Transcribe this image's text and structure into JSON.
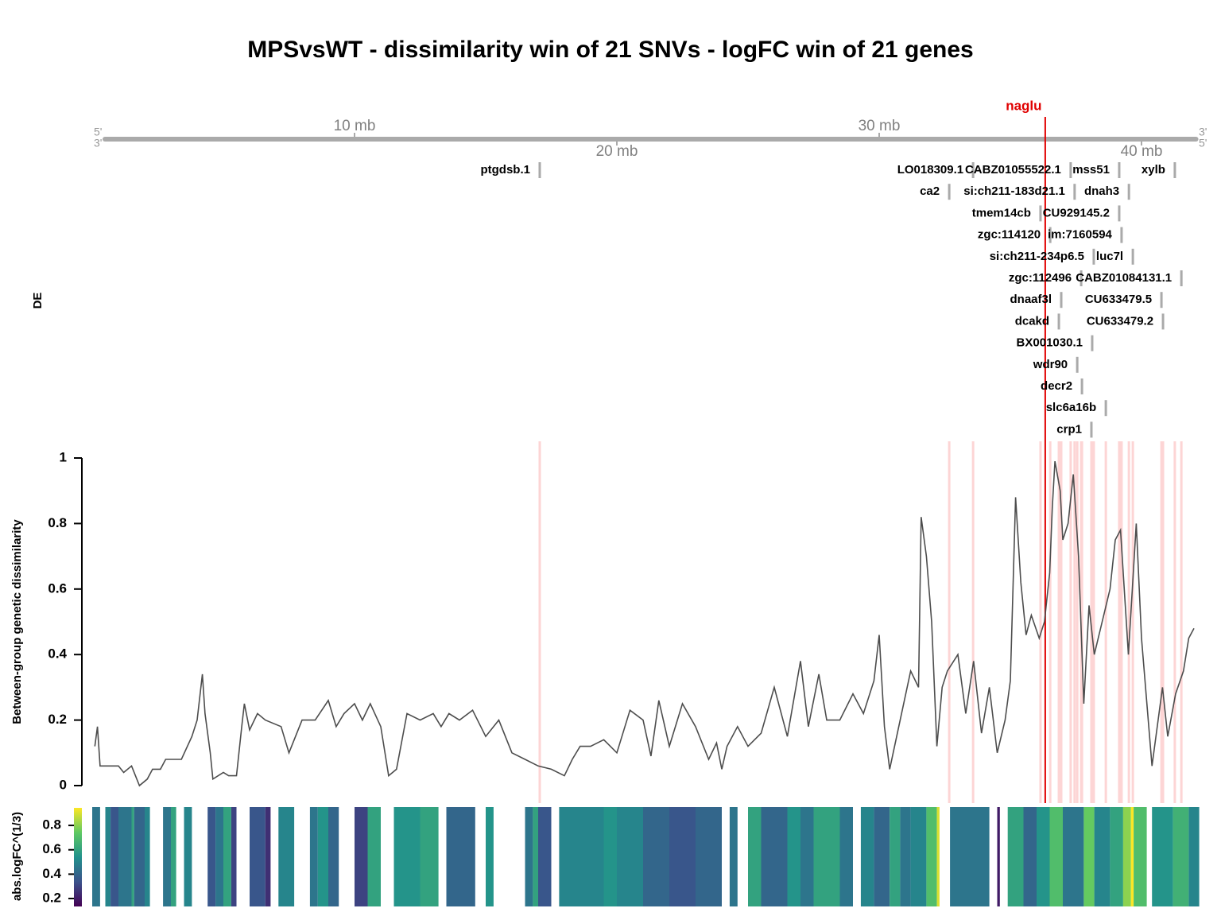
{
  "chart_data": {
    "type": "line",
    "title": "MPSvsWT - dissimilarity win of 21 SNVs - logFC win of 21 genes",
    "y_label": "Between-group genetic dissimilarity",
    "color": "#4d4d4d",
    "xlim": [
      0,
      42.2
    ],
    "ylim": [
      0,
      1
    ],
    "yticks": [
      0,
      0.2,
      0.4,
      0.6,
      0.8,
      1
    ],
    "x": [
      0.1,
      0.2,
      0.3,
      1.0,
      1.2,
      1.5,
      1.8,
      2.1,
      2.3,
      2.6,
      2.8,
      3.4,
      3.8,
      4.0,
      4.2,
      4.3,
      4.5,
      4.6,
      5.0,
      5.2,
      5.5,
      5.7,
      5.8,
      6.0,
      6.3,
      6.6,
      7.2,
      7.5,
      7.8,
      8.0,
      8.5,
      9.0,
      9.3,
      9.6,
      10.0,
      10.3,
      10.6,
      11.0,
      11.3,
      11.6,
      12.0,
      12.5,
      13.0,
      13.3,
      13.6,
      14.0,
      14.5,
      15.0,
      15.5,
      16.0,
      16.5,
      17.0,
      17.5,
      18.0,
      18.3,
      18.6,
      19.0,
      19.5,
      20.0,
      20.5,
      21.0,
      21.3,
      21.6,
      22.0,
      22.5,
      23.0,
      23.5,
      23.8,
      24.0,
      24.2,
      24.6,
      25.0,
      25.5,
      26.0,
      26.5,
      27.0,
      27.3,
      27.7,
      28.0,
      28.5,
      29.0,
      29.4,
      29.8,
      30.0,
      30.2,
      30.4,
      30.8,
      31.2,
      31.5,
      31.6,
      31.8,
      32.0,
      32.2,
      32.4,
      32.6,
      33.0,
      33.3,
      33.6,
      33.9,
      34.2,
      34.5,
      34.8,
      35.0,
      35.2,
      35.4,
      35.6,
      35.8,
      36.1,
      36.3,
      36.5,
      36.6,
      36.7,
      36.9,
      37.0,
      37.2,
      37.4,
      37.6,
      37.8,
      38.0,
      38.2,
      38.5,
      38.8,
      39.0,
      39.2,
      39.5,
      39.8,
      40.0,
      40.4,
      40.8,
      41.0,
      41.3,
      41.6,
      41.8,
      42.0
    ],
    "values": [
      0.12,
      0.18,
      0.06,
      0.06,
      0.04,
      0.06,
      0.0,
      0.02,
      0.05,
      0.05,
      0.08,
      0.08,
      0.15,
      0.2,
      0.34,
      0.22,
      0.1,
      0.02,
      0.04,
      0.03,
      0.03,
      0.18,
      0.25,
      0.17,
      0.22,
      0.2,
      0.18,
      0.1,
      0.16,
      0.2,
      0.2,
      0.26,
      0.18,
      0.22,
      0.25,
      0.2,
      0.25,
      0.18,
      0.03,
      0.05,
      0.22,
      0.2,
      0.22,
      0.18,
      0.22,
      0.2,
      0.23,
      0.15,
      0.2,
      0.1,
      0.08,
      0.06,
      0.05,
      0.03,
      0.08,
      0.12,
      0.12,
      0.14,
      0.1,
      0.23,
      0.2,
      0.09,
      0.26,
      0.12,
      0.25,
      0.18,
      0.08,
      0.13,
      0.05,
      0.12,
      0.18,
      0.12,
      0.16,
      0.3,
      0.15,
      0.38,
      0.18,
      0.34,
      0.2,
      0.2,
      0.28,
      0.22,
      0.32,
      0.46,
      0.18,
      0.05,
      0.2,
      0.35,
      0.3,
      0.82,
      0.7,
      0.5,
      0.12,
      0.3,
      0.35,
      0.4,
      0.22,
      0.38,
      0.16,
      0.3,
      0.1,
      0.2,
      0.32,
      0.88,
      0.62,
      0.46,
      0.52,
      0.45,
      0.5,
      0.65,
      0.85,
      0.99,
      0.9,
      0.75,
      0.8,
      0.95,
      0.7,
      0.25,
      0.55,
      0.4,
      0.5,
      0.6,
      0.75,
      0.78,
      0.4,
      0.8,
      0.45,
      0.06,
      0.3,
      0.15,
      0.28,
      0.35,
      0.45,
      0.48
    ],
    "genome_axis": {
      "xticks": [
        {
          "value": 10,
          "label": "10 mb"
        },
        {
          "value": 20,
          "label": "20 mb"
        },
        {
          "value": 30,
          "label": "30 mb"
        },
        {
          "value": 40,
          "label": "40 mb"
        }
      ],
      "strand_left": [
        "5'",
        "3'"
      ],
      "strand_right": [
        "3'",
        "5'"
      ]
    },
    "marker": {
      "name": "naglu",
      "position": 36.33,
      "color": "#e00000"
    },
    "genes": {
      "label": "DE",
      "highlight_color": "#fdd5d5",
      "names": [
        "ptgdsb.1",
        "LO018309.1",
        "CABZ01055522.1",
        "mss51",
        "xylb",
        "ca2",
        "si:ch211-183d21.1",
        "dnah3",
        "tmem14cb",
        "CU929145.2",
        "zgc:114120",
        "im:7160594",
        "si:ch211-234p6.5",
        "luc7l",
        "zgc:112496",
        "CABZ01084131.1",
        "dnaaf3l",
        "CU633479.5",
        "dcakd",
        "CU633479.2",
        "BX001030.1",
        "wdr90",
        "decr2",
        "slc6a16b",
        "crp1"
      ],
      "positions": [
        17.06,
        33.58,
        37.3,
        39.15,
        41.27,
        32.67,
        37.45,
        39.52,
        36.15,
        39.15,
        36.52,
        39.24,
        38.18,
        39.67,
        37.7,
        41.52,
        36.94,
        40.76,
        36.85,
        40.82,
        38.12,
        37.55,
        37.73,
        38.64,
        38.09
      ]
    },
    "heatmap": {
      "label": "abs.logFC^(1/3)",
      "colorscale": [
        "#440154",
        "#3b528b",
        "#21918c",
        "#5ec962",
        "#fde725"
      ],
      "clim": [
        0.135,
        0.944
      ],
      "cticks": [
        0.2,
        0.4,
        0.6,
        0.8
      ],
      "x": [
        0.0,
        0.3,
        0.5,
        0.7,
        1.0,
        1.5,
        1.6,
        2.0,
        2.2,
        2.7,
        3.0,
        3.2,
        3.5,
        3.8,
        4.4,
        4.7,
        5.0,
        5.3,
        5.5,
        6.0,
        6.6,
        6.8,
        7.1,
        7.7,
        8.3,
        8.6,
        9.0,
        9.4,
        10.0,
        10.5,
        11.0,
        11.5,
        12.5,
        13.2,
        13.5,
        14.6,
        15.0,
        15.3,
        16.5,
        16.8,
        17.0,
        17.5,
        17.8,
        19.5,
        20.0,
        21.0,
        22.0,
        23.0,
        24.0,
        24.3,
        24.6,
        25.0,
        25.5,
        26.5,
        27.0,
        27.5,
        28.5,
        29.0,
        29.3,
        29.8,
        30.4,
        30.8,
        31.2,
        31.8,
        32.2,
        32.3,
        32.7,
        34.2,
        34.5,
        34.6,
        34.9,
        35.5,
        36.0,
        36.5,
        37.0,
        37.8,
        38.2,
        38.8,
        39.3,
        39.6,
        39.7,
        40.2,
        40.4,
        41.2,
        41.8
      ],
      "values": [
        0.45,
        null,
        0.5,
        0.35,
        0.45,
        0.6,
        0.4,
        0.5,
        null,
        0.45,
        0.6,
        null,
        0.5,
        null,
        0.35,
        0.45,
        0.6,
        0.3,
        null,
        0.35,
        0.25,
        null,
        0.5,
        null,
        0.45,
        0.55,
        0.4,
        null,
        0.3,
        0.6,
        null,
        0.55,
        0.6,
        null,
        0.4,
        null,
        0.55,
        null,
        0.45,
        0.6,
        0.35,
        null,
        0.5,
        0.55,
        0.5,
        0.4,
        0.35,
        0.4,
        null,
        0.45,
        null,
        0.6,
        0.4,
        0.55,
        0.45,
        0.6,
        0.45,
        null,
        0.5,
        0.4,
        0.6,
        0.45,
        0.5,
        0.7,
        0.9,
        null,
        0.45,
        null,
        0.2,
        null,
        0.6,
        0.4,
        0.55,
        0.7,
        0.45,
        0.75,
        0.5,
        0.6,
        0.8,
        0.95,
        0.7,
        null,
        0.55,
        0.65,
        0.5
      ]
    }
  }
}
